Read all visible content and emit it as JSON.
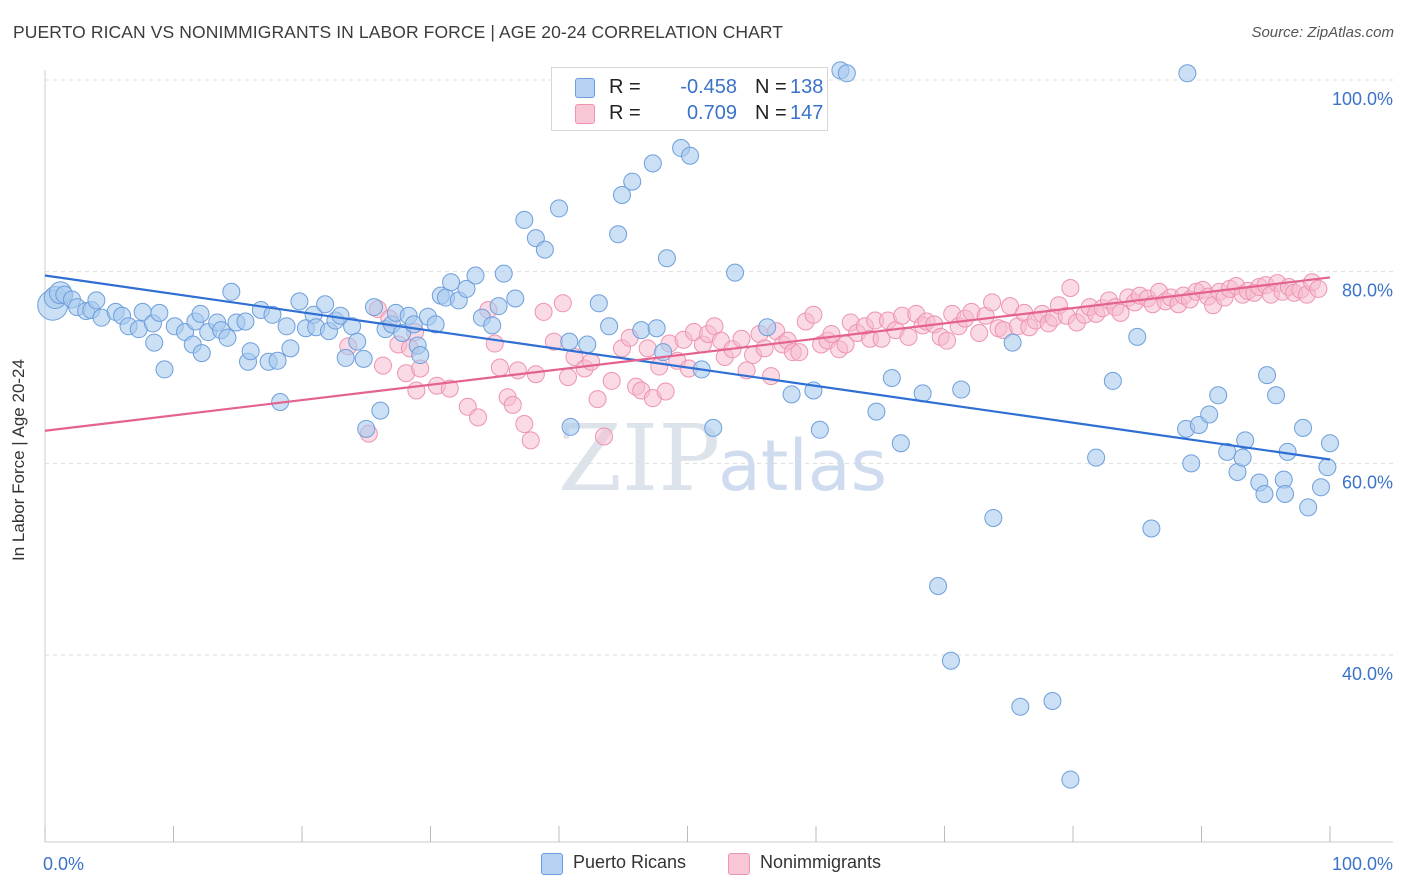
{
  "title": "PUERTO RICAN VS NONIMMIGRANTS IN LABOR FORCE | AGE 20-24 CORRELATION CHART",
  "source": "Source: ZipAtlas.com",
  "stats": [
    {
      "r_label": "R =",
      "r_value": "-0.458",
      "n_label": "N =",
      "n_value": "138"
    },
    {
      "r_label": "R =",
      "r_value": "0.709",
      "n_label": "N =",
      "n_value": "147"
    }
  ],
  "legend": [
    "Puerto Ricans",
    "Nonimmigrants"
  ],
  "colors": {
    "blue_fill": "#a9c9ef",
    "blue_stroke": "#6e9fdc",
    "blue_line": "#2f6fd4",
    "pink_fill": "#f6bccd",
    "pink_stroke": "#ee94b0",
    "pink_line": "#e4628e",
    "tick_text": "#3b73c9",
    "grid": "#dddddd",
    "watermark": "#dfe6ee"
  },
  "watermark": {
    "zip": "ZIP",
    "atlas": "atlas"
  },
  "chart_data": {
    "type": "scatter",
    "title": "PUERTO RICAN VS NONIMMIGRANTS IN LABOR FORCE | AGE 20-24 CORRELATION CHART",
    "xlabel": "",
    "ylabel": "In Labor Force | Age 20-24",
    "xlim": [
      0,
      100
    ],
    "ylim": [
      20,
      102
    ],
    "x_tick_labels": [
      "0.0%",
      "100.0%"
    ],
    "y_ticks": [
      40,
      60,
      80,
      100
    ],
    "y_tick_labels": [
      "40.0%",
      "60.0%",
      "80.0%",
      "100.0%"
    ],
    "grid": true,
    "legend_position": "bottom-center",
    "series": [
      {
        "name": "Puerto Ricans",
        "r": -0.458,
        "n": 138,
        "trend": {
          "x": [
            0,
            100
          ],
          "y": [
            79.6,
            60.4
          ]
        },
        "points": [
          [
            0.6,
            76.5
          ],
          [
            0.8,
            77.3
          ],
          [
            1.2,
            77.8
          ],
          [
            1.5,
            77.6
          ],
          [
            2.1,
            77.1
          ],
          [
            2.5,
            76.3
          ],
          [
            3.2,
            75.9
          ],
          [
            3.6,
            76.0
          ],
          [
            4.0,
            77.0
          ],
          [
            4.4,
            75.2
          ],
          [
            5.5,
            75.8
          ],
          [
            6.0,
            75.4
          ],
          [
            6.5,
            74.3
          ],
          [
            7.3,
            74.0
          ],
          [
            7.6,
            75.8
          ],
          [
            8.4,
            74.6
          ],
          [
            8.5,
            72.6
          ],
          [
            8.9,
            75.7
          ],
          [
            9.3,
            69.8
          ],
          [
            10.1,
            74.3
          ],
          [
            10.9,
            73.7
          ],
          [
            11.5,
            72.4
          ],
          [
            11.7,
            74.8
          ],
          [
            12.1,
            75.6
          ],
          [
            12.2,
            71.5
          ],
          [
            12.7,
            73.7
          ],
          [
            13.4,
            74.7
          ],
          [
            13.7,
            73.9
          ],
          [
            14.2,
            73.1
          ],
          [
            14.5,
            77.9
          ],
          [
            14.9,
            74.7
          ],
          [
            15.6,
            74.8
          ],
          [
            15.8,
            70.6
          ],
          [
            16.0,
            71.7
          ],
          [
            16.8,
            76.0
          ],
          [
            17.4,
            70.6
          ],
          [
            17.7,
            75.5
          ],
          [
            18.1,
            70.7
          ],
          [
            18.3,
            66.4
          ],
          [
            18.8,
            74.3
          ],
          [
            19.1,
            72.0
          ],
          [
            19.8,
            76.9
          ],
          [
            20.3,
            74.1
          ],
          [
            20.9,
            75.5
          ],
          [
            21.1,
            74.2
          ],
          [
            21.8,
            76.6
          ],
          [
            22.1,
            73.8
          ],
          [
            22.6,
            74.9
          ],
          [
            23.0,
            75.4
          ],
          [
            23.4,
            71.0
          ],
          [
            23.9,
            74.3
          ],
          [
            24.3,
            72.7
          ],
          [
            24.8,
            70.9
          ],
          [
            25.0,
            63.6
          ],
          [
            25.6,
            76.3
          ],
          [
            26.1,
            65.5
          ],
          [
            26.5,
            74.0
          ],
          [
            27.0,
            74.5
          ],
          [
            27.3,
            75.7
          ],
          [
            27.8,
            73.6
          ],
          [
            28.3,
            75.4
          ],
          [
            28.7,
            74.5
          ],
          [
            29.0,
            72.3
          ],
          [
            29.2,
            71.3
          ],
          [
            29.8,
            75.3
          ],
          [
            30.4,
            74.5
          ],
          [
            30.8,
            77.5
          ],
          [
            31.2,
            77.3
          ],
          [
            31.6,
            78.9
          ],
          [
            32.2,
            77.0
          ],
          [
            32.8,
            78.2
          ],
          [
            33.5,
            79.6
          ],
          [
            34.0,
            75.2
          ],
          [
            34.8,
            74.4
          ],
          [
            35.3,
            76.4
          ],
          [
            35.7,
            79.8
          ],
          [
            36.6,
            77.2
          ],
          [
            37.3,
            85.4
          ],
          [
            38.2,
            83.5
          ],
          [
            38.9,
            82.3
          ],
          [
            40.0,
            86.6
          ],
          [
            40.8,
            72.7
          ],
          [
            40.9,
            63.8
          ],
          [
            42.2,
            72.4
          ],
          [
            43.1,
            76.7
          ],
          [
            43.9,
            74.3
          ],
          [
            44.6,
            83.9
          ],
          [
            44.9,
            88.0
          ],
          [
            45.7,
            89.4
          ],
          [
            46.4,
            73.9
          ],
          [
            47.3,
            91.3
          ],
          [
            47.6,
            74.1
          ],
          [
            48.1,
            71.6
          ],
          [
            48.4,
            81.4
          ],
          [
            49.5,
            92.9
          ],
          [
            50.2,
            92.1
          ],
          [
            50.4,
            97.3
          ],
          [
            51.1,
            69.8
          ],
          [
            52.0,
            63.7
          ],
          [
            53.1,
            99.8
          ],
          [
            53.4,
            99.7
          ],
          [
            53.7,
            79.9
          ],
          [
            56.2,
            74.2
          ],
          [
            58.1,
            67.2
          ],
          [
            59.8,
            67.6
          ],
          [
            60.3,
            63.5
          ],
          [
            61.9,
            101.0
          ],
          [
            62.4,
            100.7
          ],
          [
            64.7,
            65.4
          ],
          [
            65.9,
            68.9
          ],
          [
            66.6,
            62.1
          ],
          [
            68.3,
            67.3
          ],
          [
            69.5,
            47.2
          ],
          [
            70.5,
            39.4
          ],
          [
            71.3,
            67.7
          ],
          [
            73.8,
            54.3
          ],
          [
            75.3,
            72.6
          ],
          [
            75.9,
            34.6
          ],
          [
            78.4,
            35.2
          ],
          [
            79.8,
            27.0
          ],
          [
            81.8,
            60.6
          ],
          [
            83.1,
            68.6
          ],
          [
            85.0,
            73.2
          ],
          [
            86.1,
            53.2
          ],
          [
            88.8,
            63.6
          ],
          [
            88.9,
            100.7
          ],
          [
            89.2,
            60.0
          ],
          [
            89.8,
            64.0
          ],
          [
            90.6,
            65.1
          ],
          [
            91.3,
            67.1
          ],
          [
            92.0,
            61.2
          ],
          [
            92.8,
            59.1
          ],
          [
            93.2,
            60.6
          ],
          [
            93.4,
            62.4
          ],
          [
            94.5,
            58.0
          ],
          [
            94.9,
            56.8
          ],
          [
            95.1,
            69.2
          ],
          [
            95.8,
            67.1
          ],
          [
            96.4,
            58.3
          ],
          [
            96.5,
            56.8
          ],
          [
            96.7,
            61.2
          ],
          [
            97.9,
            63.7
          ],
          [
            98.3,
            55.4
          ],
          [
            99.3,
            57.5
          ],
          [
            99.8,
            59.6
          ],
          [
            100.0,
            62.1
          ]
        ]
      },
      {
        "name": "Nonimmigrants",
        "r": 0.709,
        "n": 147,
        "trend": {
          "x": [
            0,
            100
          ],
          "y": [
            63.4,
            79.4
          ]
        },
        "points": [
          [
            23.6,
            72.2
          ],
          [
            25.2,
            63.1
          ],
          [
            25.9,
            76.1
          ],
          [
            26.3,
            70.2
          ],
          [
            26.8,
            75.1
          ],
          [
            27.5,
            72.4
          ],
          [
            28.1,
            69.4
          ],
          [
            28.4,
            72.0
          ],
          [
            28.8,
            73.7
          ],
          [
            28.9,
            67.6
          ],
          [
            29.2,
            69.9
          ],
          [
            30.5,
            68.1
          ],
          [
            31.5,
            67.8
          ],
          [
            32.9,
            65.9
          ],
          [
            33.7,
            64.8
          ],
          [
            34.5,
            76.0
          ],
          [
            35.0,
            72.5
          ],
          [
            35.4,
            70.0
          ],
          [
            36.0,
            66.9
          ],
          [
            36.4,
            66.1
          ],
          [
            36.8,
            69.7
          ],
          [
            37.3,
            64.1
          ],
          [
            37.8,
            62.4
          ],
          [
            38.2,
            69.3
          ],
          [
            38.8,
            75.8
          ],
          [
            39.6,
            72.7
          ],
          [
            40.3,
            76.7
          ],
          [
            40.7,
            69.0
          ],
          [
            41.2,
            71.1
          ],
          [
            42.0,
            69.9
          ],
          [
            42.5,
            70.6
          ],
          [
            43.0,
            66.7
          ],
          [
            43.5,
            62.8
          ],
          [
            44.1,
            68.6
          ],
          [
            44.9,
            72.0
          ],
          [
            45.5,
            73.1
          ],
          [
            46.0,
            68.0
          ],
          [
            46.4,
            67.6
          ],
          [
            46.9,
            72.0
          ],
          [
            47.3,
            66.8
          ],
          [
            47.8,
            70.1
          ],
          [
            48.3,
            67.5
          ],
          [
            48.6,
            72.5
          ],
          [
            49.2,
            70.7
          ],
          [
            49.7,
            72.9
          ],
          [
            50.1,
            69.9
          ],
          [
            50.5,
            73.7
          ],
          [
            51.2,
            72.4
          ],
          [
            51.6,
            73.5
          ],
          [
            52.1,
            74.3
          ],
          [
            52.6,
            72.8
          ],
          [
            52.9,
            71.1
          ],
          [
            53.5,
            71.9
          ],
          [
            54.2,
            73.0
          ],
          [
            54.6,
            69.7
          ],
          [
            55.1,
            71.3
          ],
          [
            55.6,
            73.5
          ],
          [
            56.0,
            72.0
          ],
          [
            56.5,
            69.1
          ],
          [
            56.9,
            73.8
          ],
          [
            57.4,
            72.4
          ],
          [
            57.8,
            72.8
          ],
          [
            58.2,
            71.6
          ],
          [
            58.7,
            71.6
          ],
          [
            59.2,
            74.8
          ],
          [
            59.8,
            75.5
          ],
          [
            60.4,
            72.4
          ],
          [
            60.9,
            72.8
          ],
          [
            61.2,
            73.5
          ],
          [
            61.8,
            71.9
          ],
          [
            62.3,
            72.4
          ],
          [
            62.7,
            74.7
          ],
          [
            63.2,
            73.6
          ],
          [
            63.8,
            74.3
          ],
          [
            64.2,
            73.0
          ],
          [
            64.6,
            74.9
          ],
          [
            65.1,
            73.0
          ],
          [
            65.6,
            74.9
          ],
          [
            66.2,
            73.9
          ],
          [
            66.7,
            75.4
          ],
          [
            67.2,
            73.2
          ],
          [
            67.8,
            75.6
          ],
          [
            68.3,
            74.4
          ],
          [
            68.6,
            74.8
          ],
          [
            69.2,
            74.5
          ],
          [
            69.7,
            73.2
          ],
          [
            70.2,
            72.8
          ],
          [
            70.6,
            75.6
          ],
          [
            71.1,
            74.3
          ],
          [
            71.6,
            75.1
          ],
          [
            72.1,
            75.8
          ],
          [
            72.7,
            73.6
          ],
          [
            73.2,
            75.4
          ],
          [
            73.7,
            76.8
          ],
          [
            74.2,
            74.1
          ],
          [
            74.6,
            73.9
          ],
          [
            75.1,
            76.4
          ],
          [
            75.7,
            74.3
          ],
          [
            76.2,
            75.7
          ],
          [
            76.6,
            74.2
          ],
          [
            77.1,
            74.9
          ],
          [
            77.6,
            75.6
          ],
          [
            78.1,
            74.6
          ],
          [
            78.5,
            75.2
          ],
          [
            78.9,
            76.5
          ],
          [
            79.5,
            75.4
          ],
          [
            79.8,
            78.3
          ],
          [
            80.3,
            74.7
          ],
          [
            80.9,
            75.5
          ],
          [
            81.3,
            76.3
          ],
          [
            81.8,
            75.6
          ],
          [
            82.3,
            76.2
          ],
          [
            82.8,
            77.0
          ],
          [
            83.3,
            76.3
          ],
          [
            83.7,
            75.7
          ],
          [
            84.3,
            77.3
          ],
          [
            84.8,
            76.8
          ],
          [
            85.2,
            77.5
          ],
          [
            85.8,
            77.2
          ],
          [
            86.2,
            76.6
          ],
          [
            86.7,
            77.9
          ],
          [
            87.2,
            76.9
          ],
          [
            87.6,
            77.3
          ],
          [
            88.2,
            76.6
          ],
          [
            88.6,
            77.5
          ],
          [
            89.1,
            77.1
          ],
          [
            89.6,
            77.9
          ],
          [
            90.1,
            78.1
          ],
          [
            90.5,
            77.4
          ],
          [
            90.9,
            76.5
          ],
          [
            91.4,
            77.9
          ],
          [
            91.8,
            77.3
          ],
          [
            92.2,
            78.2
          ],
          [
            92.7,
            78.5
          ],
          [
            93.2,
            77.6
          ],
          [
            93.6,
            78.0
          ],
          [
            94.1,
            77.8
          ],
          [
            94.5,
            78.4
          ],
          [
            95.0,
            78.6
          ],
          [
            95.4,
            77.6
          ],
          [
            95.9,
            78.8
          ],
          [
            96.3,
            77.9
          ],
          [
            96.8,
            78.4
          ],
          [
            97.2,
            77.8
          ],
          [
            97.7,
            78.1
          ],
          [
            98.2,
            77.6
          ],
          [
            98.6,
            78.9
          ],
          [
            99.1,
            78.2
          ]
        ]
      }
    ]
  }
}
